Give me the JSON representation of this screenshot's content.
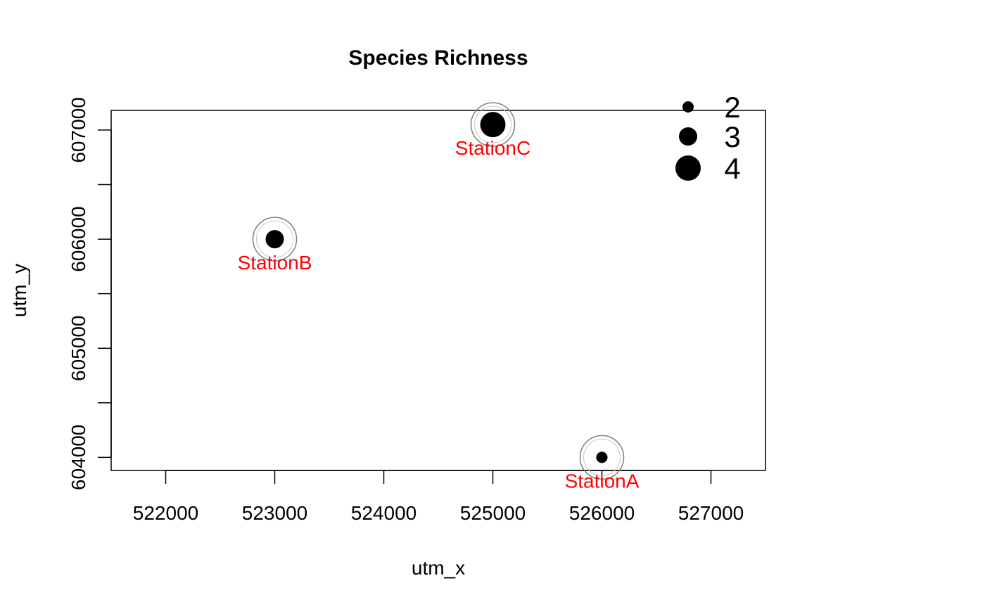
{
  "chart_data": {
    "type": "scatter",
    "title": "Species Richness",
    "xlabel": "utm_x",
    "ylabel": "utm_y",
    "xlim": [
      521500,
      527500
    ],
    "ylim": [
      603880,
      607180
    ],
    "x_ticks": [
      522000,
      523000,
      524000,
      525000,
      526000,
      527000
    ],
    "y_ticks": [
      604000,
      604500,
      605000,
      605500,
      606000,
      606500,
      607000
    ],
    "y_tick_labels": [
      "604000",
      "",
      "605000",
      "",
      "606000",
      "",
      "607000"
    ],
    "grid": false,
    "points": [
      {
        "label": "StationA",
        "x": 526000,
        "y": 604000,
        "richness": 2
      },
      {
        "label": "StationB",
        "x": 523000,
        "y": 606000,
        "richness": 3
      },
      {
        "label": "StationC",
        "x": 525000,
        "y": 607050,
        "richness": 4
      }
    ],
    "point_color": "#000000",
    "halo_color": "#808080",
    "label_color": "#ff0000",
    "legend": {
      "position": "top-right",
      "entries": [
        {
          "label": "2",
          "value": 2
        },
        {
          "label": "3",
          "value": 3
        },
        {
          "label": "4",
          "value": 4
        }
      ]
    }
  }
}
